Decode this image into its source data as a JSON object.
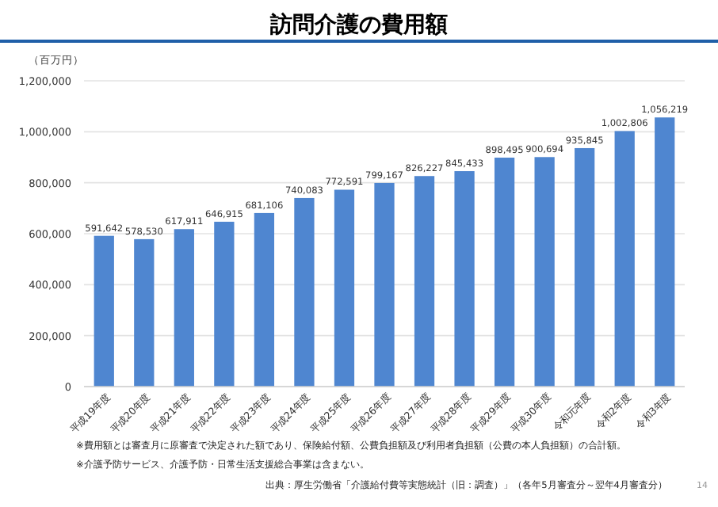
{
  "chart_data": {
    "type": "bar",
    "title": "訪問介護の費用額",
    "ylabel": "（百万円）",
    "categories": [
      "平成19年度",
      "平成20年度",
      "平成21年度",
      "平成22年度",
      "平成23年度",
      "平成24年度",
      "平成25年度",
      "平成26年度",
      "平成27年度",
      "平成28年度",
      "平成29年度",
      "平成30年度",
      "令和元年度",
      "令和2年度",
      "令和3年度"
    ],
    "values": [
      591642,
      578530,
      617911,
      646915,
      681106,
      740083,
      772591,
      799167,
      826227,
      845433,
      898495,
      900694,
      935845,
      1002806,
      1056219
    ],
    "color": "#4f86d0",
    "ylim": [
      0,
      1200000
    ],
    "yticks": [
      {
        "value": 0,
        "label": "0"
      },
      {
        "value": 200000,
        "label": "200,000"
      },
      {
        "value": 400000,
        "label": "400,000"
      },
      {
        "value": 600000,
        "label": "600,000"
      },
      {
        "value": 800000,
        "label": "800,000"
      },
      {
        "value": 1000000,
        "label": "1,000,000"
      },
      {
        "value": 1200000,
        "label": "1,200,000"
      }
    ],
    "value_labels": [
      "591,642",
      "578,530",
      "617,911",
      "646,915",
      "681,106",
      "740,083",
      "772,591",
      "799,167",
      "826,227",
      "845,433",
      "898,495",
      "900,694",
      "935,845",
      "1,002,806",
      "1,056,219"
    ],
    "grid": "y",
    "annotations": [
      "※費用額とは審査月に原審査で決定された額であり、保険給付額、公費負担額及び利用者負担額（公費の本人負担額）の合計額。",
      "※介護予防サービス、介護予防・日常生活支援総合事業は含まない。",
      "出典：厚生労働省「介護給付費等実態統計（旧：調査）」（各年5月審査分～翌年4月審査分）",
      "14"
    ]
  }
}
